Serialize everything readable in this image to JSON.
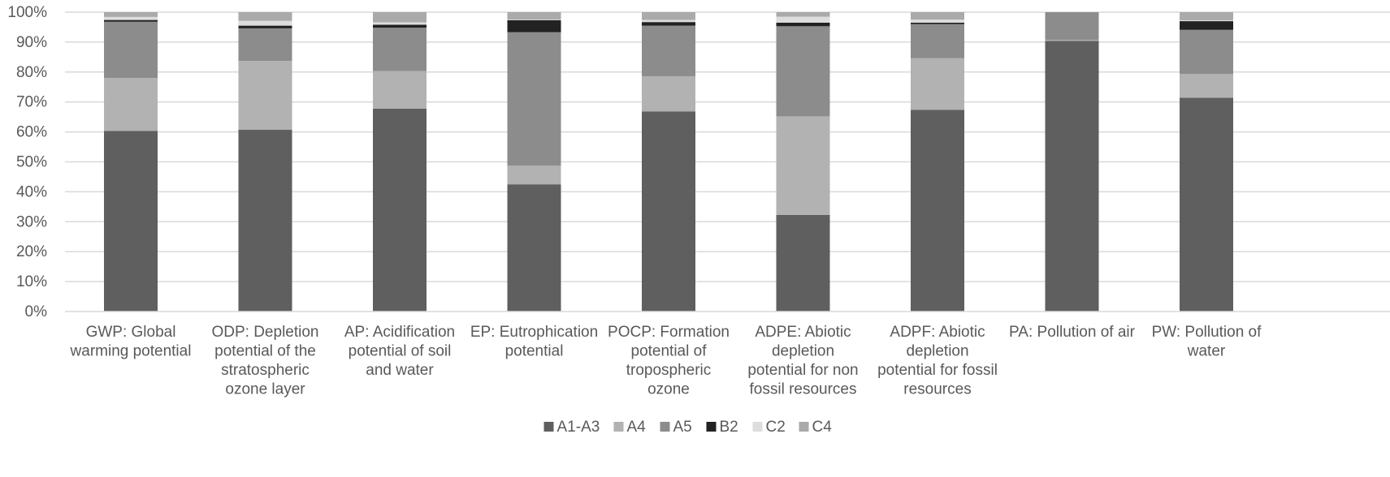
{
  "chart_data": {
    "type": "bar",
    "stacked": true,
    "percent": true,
    "title": "",
    "xlabel": "",
    "ylabel": "",
    "ylim": [
      0,
      100
    ],
    "y_ticks": [
      "0%",
      "10%",
      "20%",
      "30%",
      "40%",
      "50%",
      "60%",
      "70%",
      "80%",
      "90%",
      "100%"
    ],
    "grid": "horizontal",
    "legend_position": "bottom",
    "categories": [
      [
        "GWP: Global",
        "warming potential"
      ],
      [
        "ODP: Depletion",
        "potential of the",
        "stratospheric",
        "ozone layer"
      ],
      [
        "AP: Acidification",
        "potential of soil",
        "and water"
      ],
      [
        "EP: Eutrophication",
        "potential"
      ],
      [
        "POCP: Formation",
        "potential of",
        "tropospheric",
        "ozone"
      ],
      [
        "ADPE: Abiotic",
        "depletion",
        "potential for non",
        "fossil resources"
      ],
      [
        "ADPF: Abiotic",
        "depletion",
        "potential for fossil",
        "resources"
      ],
      [
        "PA: Pollution of air"
      ],
      [
        "PW: Pollution of",
        "water"
      ]
    ],
    "series": [
      {
        "name": "A1-A3",
        "color": "#5f5f5f",
        "values": [
          60.3,
          60.7,
          67.8,
          42.5,
          66.8,
          32.3,
          67.4,
          90.4,
          71.4
        ]
      },
      {
        "name": "A4",
        "color": "#b2b2b2",
        "values": [
          17.7,
          23.0,
          12.5,
          6.2,
          11.8,
          32.9,
          17.2,
          0.3,
          8.0
        ]
      },
      {
        "name": "A5",
        "color": "#8c8c8c",
        "values": [
          18.8,
          10.9,
          14.5,
          44.6,
          16.9,
          30.1,
          11.4,
          9.3,
          14.7
        ]
      },
      {
        "name": "B2",
        "color": "#222222",
        "values": [
          0.6,
          0.9,
          1.0,
          4.0,
          1.2,
          1.2,
          0.5,
          0.0,
          2.9
        ]
      },
      {
        "name": "C2",
        "color": "#dddddd",
        "values": [
          1.0,
          1.6,
          0.8,
          0.2,
          0.7,
          2.0,
          1.0,
          0.0,
          0.3
        ]
      },
      {
        "name": "C4",
        "color": "#aaaaaa",
        "values": [
          1.6,
          2.9,
          3.4,
          2.5,
          2.6,
          1.5,
          2.5,
          0.0,
          2.7
        ]
      }
    ]
  }
}
